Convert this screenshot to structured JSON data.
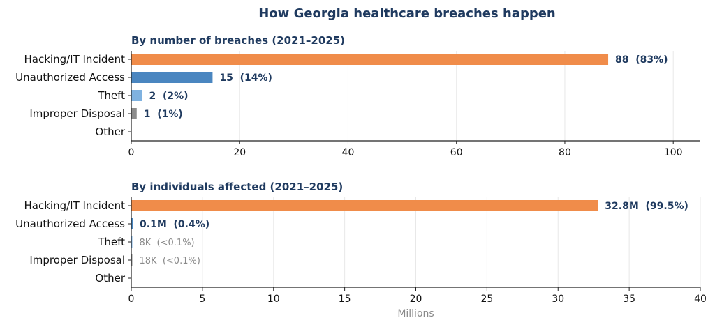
{
  "title": "How Georgia healthcare breaches happen",
  "chart_data": [
    {
      "type": "bar",
      "orientation": "horizontal",
      "title": "By number of breaches (2021–2025)",
      "categories": [
        "Hacking/IT Incident",
        "Unauthorized Access",
        "Theft",
        "Improper Disposal",
        "Other"
      ],
      "values": [
        88,
        15,
        2,
        1,
        0
      ],
      "data_labels": [
        "88  (83%)",
        "15  (14%)",
        "2  (2%)",
        "1  (1%)",
        ""
      ],
      "label_styles": [
        "strong",
        "strong",
        "strong",
        "strong",
        "strong"
      ],
      "colors": [
        "#f08c4a",
        "#4a86c0",
        "#7fb2e0",
        "#8c8c8c",
        "#cccccc"
      ],
      "xlim": [
        0,
        105
      ],
      "xticks": [
        0,
        20,
        40,
        60,
        80,
        100
      ],
      "xlabel": "",
      "grid": "x"
    },
    {
      "type": "bar",
      "orientation": "horizontal",
      "title": "By individuals affected (2021–2025)",
      "categories": [
        "Hacking/IT Incident",
        "Unauthorized Access",
        "Theft",
        "Improper Disposal",
        "Other"
      ],
      "values": [
        32.8,
        0.1,
        0.008,
        0.018,
        0
      ],
      "data_labels": [
        "32.8M  (99.5%)",
        "0.1M  (0.4%)",
        "8K  (<0.1%)",
        "18K  (<0.1%)",
        ""
      ],
      "label_styles": [
        "strong",
        "strong",
        "muted",
        "muted",
        "muted"
      ],
      "colors": [
        "#f08c4a",
        "#4a86c0",
        "#7fb2e0",
        "#8c8c8c",
        "#cccccc"
      ],
      "xlim": [
        0,
        40
      ],
      "xticks": [
        0,
        5,
        10,
        15,
        20,
        25,
        30,
        35,
        40
      ],
      "xlabel": "Millions",
      "grid": "x"
    }
  ]
}
